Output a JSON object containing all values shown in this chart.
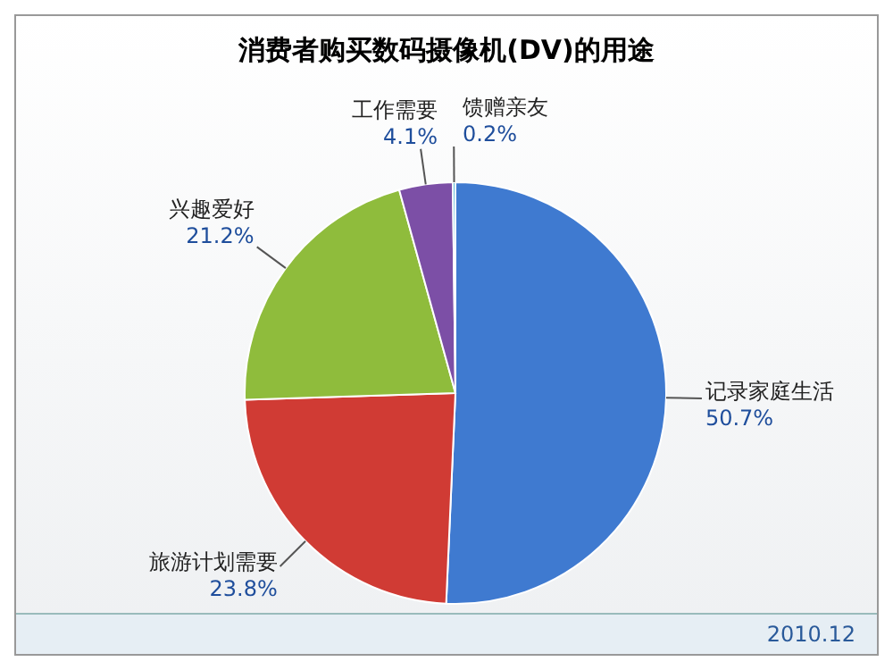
{
  "chart_data": {
    "type": "pie",
    "title": "消费者购买数码摄像机(DV)的用途",
    "categories": [
      "记录家庭生活",
      "旅游计划需要",
      "兴趣爱好",
      "工作需要",
      "馈赠亲友"
    ],
    "values": [
      50.7,
      23.8,
      21.2,
      4.1,
      0.2
    ],
    "value_labels": [
      "50.7%",
      "23.8%",
      "21.2%",
      "4.1%",
      "0.2%"
    ],
    "colors": [
      "#3f7ad0",
      "#d03b34",
      "#8fbc3c",
      "#7c4fa6",
      "#4fb6d6"
    ],
    "legend": false,
    "annotations": [
      "2010.12"
    ]
  }
}
